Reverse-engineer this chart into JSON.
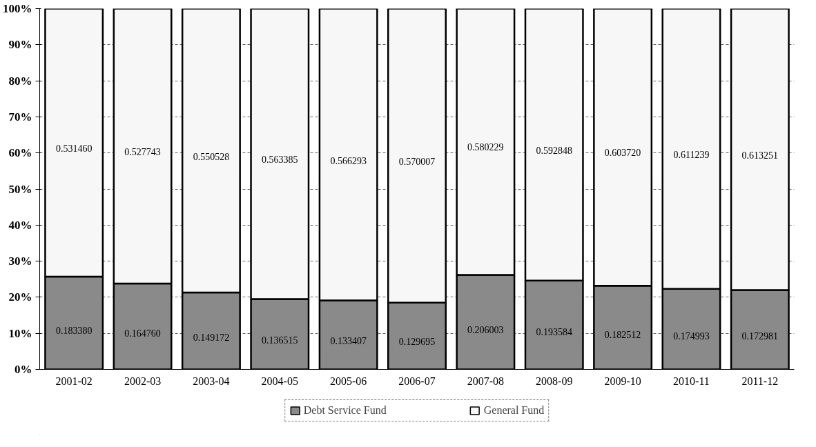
{
  "chart_data": {
    "type": "bar",
    "stacked": true,
    "categories": [
      "2001-02",
      "2002-03",
      "2003-04",
      "2004-05",
      "2005-06",
      "2006-07",
      "2007-08",
      "2008-09",
      "2009-10",
      "2010-11",
      "2011-12"
    ],
    "series": [
      {
        "name": "Debt Service Fund",
        "color": "#8a8a8a",
        "values": [
          25.7,
          23.8,
          21.3,
          19.5,
          19.1,
          18.5,
          26.2,
          24.6,
          23.2,
          22.3,
          22.0
        ]
      },
      {
        "name": "General Fund",
        "color": "#f7f7f7",
        "values": [
          74.3,
          76.2,
          78.7,
          80.5,
          80.9,
          81.5,
          73.8,
          75.4,
          76.8,
          77.7,
          78.0
        ]
      }
    ],
    "annotations": [
      "0.183380",
      "0.164760",
      "0.149172",
      "0.136515",
      "0.133407",
      "0.129695",
      "0.206003",
      "0.193584",
      "0.182512",
      "0.174993",
      "0.172981",
      "0.531460",
      "0.527743",
      "0.550528",
      "0.563385",
      "0.566293",
      "0.570007",
      "0.580229",
      "0.592848",
      "0.603720",
      "0.611239",
      "0.613251"
    ],
    "ylim": [
      0,
      100
    ],
    "yticks": [
      {
        "value": 0,
        "label": "0%"
      },
      {
        "value": 10,
        "label": "10%"
      },
      {
        "value": 20,
        "label": "20%"
      },
      {
        "value": 30,
        "label": "30%"
      },
      {
        "value": 40,
        "label": "40%"
      },
      {
        "value": 50,
        "label": "50%"
      },
      {
        "value": 60,
        "label": "60%"
      },
      {
        "value": 70,
        "label": "70%"
      },
      {
        "value": 80,
        "label": "80%"
      },
      {
        "value": 90,
        "label": "90%"
      },
      {
        "value": 100,
        "label": "100%"
      }
    ],
    "grid": "y",
    "legend": "bottom"
  }
}
